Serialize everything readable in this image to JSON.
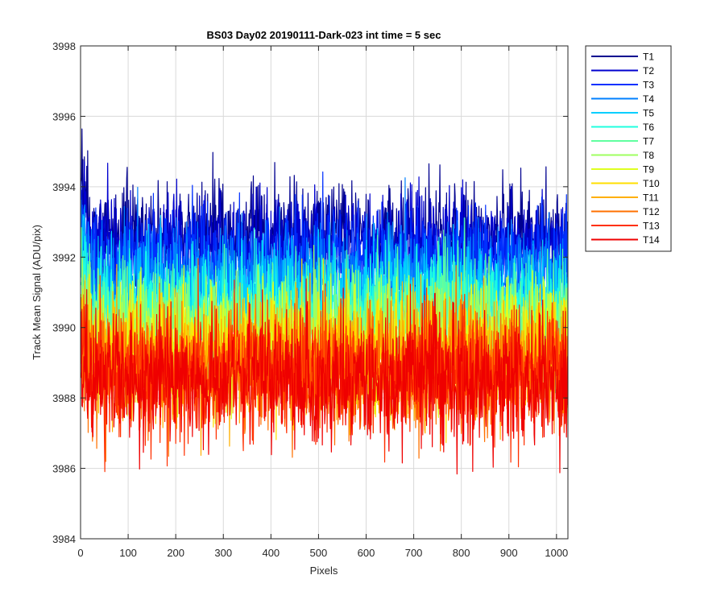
{
  "chart_data": {
    "type": "line",
    "title": "BS03 Day02 20190111-Dark-023 int time = 5 sec",
    "xlabel": "Pixels",
    "ylabel": "Track Mean Signal (ADU/pix)",
    "xlim": [
      0,
      1024
    ],
    "ylim": [
      3984,
      3998
    ],
    "xticks": [
      0,
      100,
      200,
      300,
      400,
      500,
      600,
      700,
      800,
      900,
      1000
    ],
    "yticks": [
      3984,
      3986,
      3988,
      3990,
      3992,
      3994,
      3996,
      3998
    ],
    "grid": true,
    "legend_placement": "outside-top-right",
    "points_per_series": 1024,
    "series": [
      {
        "name": "T1",
        "color": "#00008f",
        "mean": 3992.6,
        "noise_sd": 0.75,
        "min": 3990.0,
        "max": 3996.1
      },
      {
        "name": "T2",
        "color": "#0000cf",
        "mean": 3992.3,
        "noise_sd": 0.75,
        "min": 3989.8,
        "max": 3995.9
      },
      {
        "name": "T3",
        "color": "#0030ff",
        "mean": 3991.9,
        "noise_sd": 0.75,
        "min": 3989.4,
        "max": 3995.2
      },
      {
        "name": "T4",
        "color": "#0080ff",
        "mean": 3991.4,
        "noise_sd": 0.75,
        "min": 3988.9,
        "max": 3994.6
      },
      {
        "name": "T5",
        "color": "#00cfff",
        "mean": 3990.9,
        "noise_sd": 0.75,
        "min": 3988.3,
        "max": 3994.3
      },
      {
        "name": "T6",
        "color": "#20ffdf",
        "mean": 3990.5,
        "noise_sd": 0.8,
        "min": 3987.8,
        "max": 3994.0
      },
      {
        "name": "T7",
        "color": "#60ffa0",
        "mean": 3990.2,
        "noise_sd": 0.8,
        "min": 3987.4,
        "max": 3993.6
      },
      {
        "name": "T8",
        "color": "#9fff60",
        "mean": 3989.8,
        "noise_sd": 0.8,
        "min": 3987.0,
        "max": 3993.2
      },
      {
        "name": "T9",
        "color": "#dfff20",
        "mean": 3989.5,
        "noise_sd": 0.8,
        "min": 3986.6,
        "max": 3993.0
      },
      {
        "name": "T10",
        "color": "#ffdf00",
        "mean": 3989.3,
        "noise_sd": 0.85,
        "min": 3986.4,
        "max": 3992.8
      },
      {
        "name": "T11",
        "color": "#ffaf00",
        "mean": 3989.0,
        "noise_sd": 0.85,
        "min": 3986.2,
        "max": 3992.5
      },
      {
        "name": "T12",
        "color": "#ff7000",
        "mean": 3988.8,
        "noise_sd": 0.85,
        "min": 3985.6,
        "max": 3992.3
      },
      {
        "name": "T13",
        "color": "#ff3000",
        "mean": 3988.7,
        "noise_sd": 0.9,
        "min": 3985.6,
        "max": 3992.0
      },
      {
        "name": "T14",
        "color": "#ef0000",
        "mean": 3988.6,
        "noise_sd": 0.9,
        "min": 3985.2,
        "max": 3991.9
      }
    ]
  }
}
